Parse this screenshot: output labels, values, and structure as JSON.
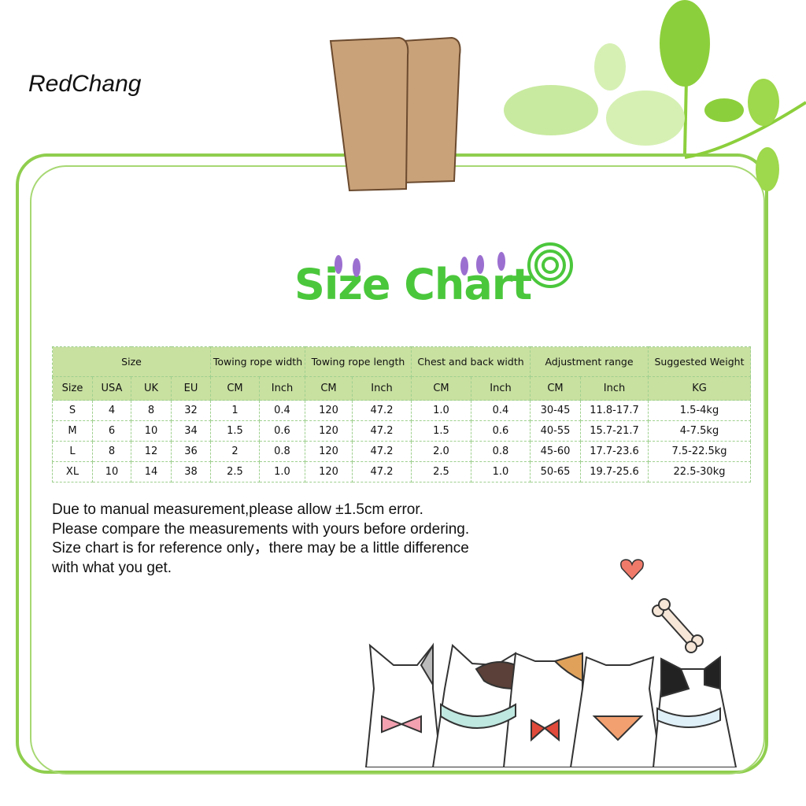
{
  "brand": "RedChang",
  "title": "Size Chart",
  "colors": {
    "frame": "#8fce4e",
    "title": "#4bc73c",
    "header_bg": "#c8e0a0"
  },
  "table": {
    "group_headers": [
      "Size",
      "Towing rope width",
      "Towing rope length",
      "Chest and back width",
      "Adjustment range",
      "Suggested Weight"
    ],
    "sub_headers": [
      "Size",
      "USA",
      "UK",
      "EU",
      "CM",
      "Inch",
      "CM",
      "Inch",
      "CM",
      "Inch",
      "CM",
      "Inch",
      "KG"
    ],
    "rows": [
      [
        "S",
        "4",
        "8",
        "32",
        "1",
        "0.4",
        "120",
        "47.2",
        "1.0",
        "0.4",
        "30-45",
        "11.8-17.7",
        "1.5-4kg"
      ],
      [
        "M",
        "6",
        "10",
        "34",
        "1.5",
        "0.6",
        "120",
        "47.2",
        "1.5",
        "0.6",
        "40-55",
        "15.7-21.7",
        "4-7.5kg"
      ],
      [
        "L",
        "8",
        "12",
        "36",
        "2",
        "0.8",
        "120",
        "47.2",
        "2.0",
        "0.8",
        "45-60",
        "17.7-23.6",
        "7.5-22.5kg"
      ],
      [
        "XL",
        "10",
        "14",
        "38",
        "2.5",
        "1.0",
        "120",
        "47.2",
        "2.5",
        "1.0",
        "50-65",
        "19.7-25.6",
        "22.5-30kg"
      ]
    ]
  },
  "notes": [
    "Due to manual measurement,please allow ±1.5cm error.",
    "Please compare the measurements with yours before ordering.",
    "Size chart is for reference only，there may be a little difference",
    "with what you get."
  ],
  "decorations": [
    "clip-icon",
    "leaf-icon",
    "spiral-icon",
    "heart-icon",
    "bone-icon",
    "cat-icon"
  ]
}
